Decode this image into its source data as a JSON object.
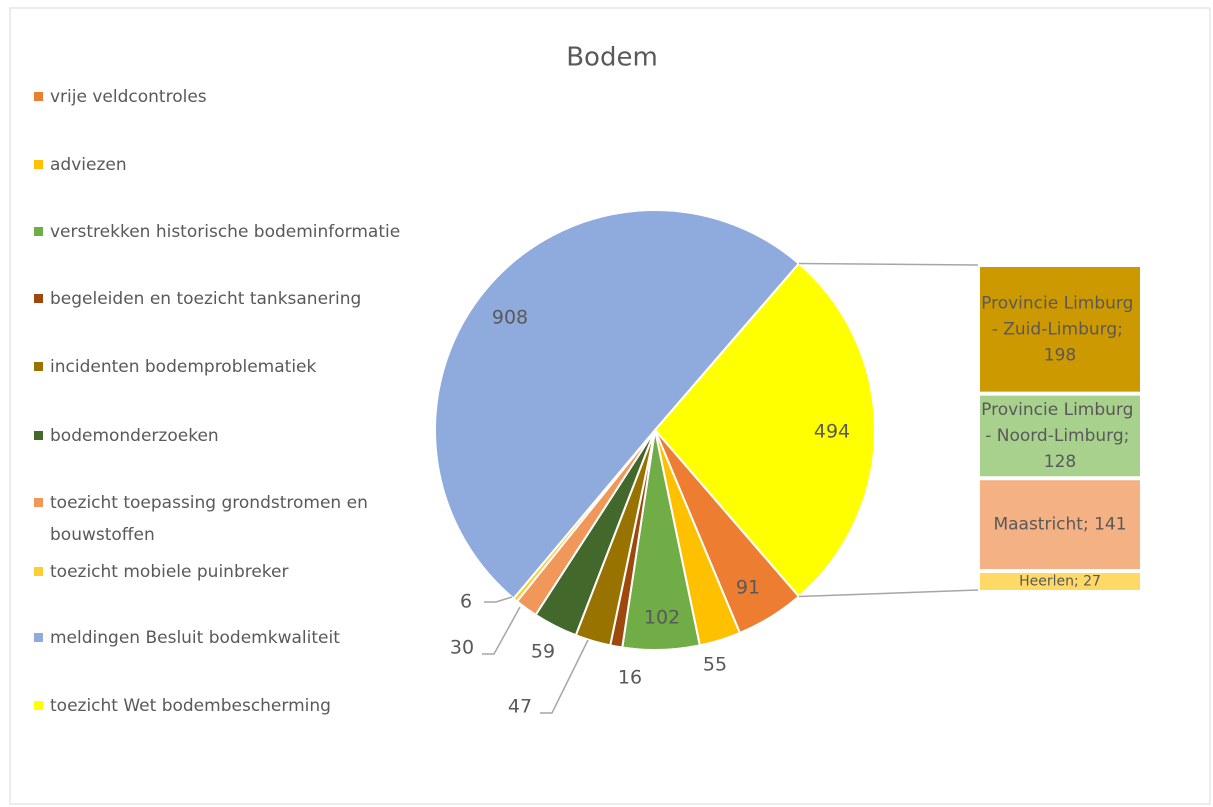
{
  "chart_data": {
    "type": "bar-of-pie",
    "title": "Bodem",
    "legend": "left",
    "categories": [
      "vrije veldcontroles",
      "adviezen",
      "verstrekken historische bodeminformatie",
      "begeleiden en toezicht tanksanering",
      "incidenten bodemproblematiek",
      "bodemonderzoeken",
      "toezicht toepassing grondstromen en bouwstoffen",
      "toezicht mobiele puinbreker",
      "meldingen Besluit bodemkwaliteit",
      "toezicht Wet bodembescherming"
    ],
    "values": [
      91,
      55,
      102,
      16,
      47,
      59,
      30,
      6,
      908,
      494
    ],
    "colors": [
      "#ED7D31",
      "#FFC000",
      "#70AD47",
      "#9E480E",
      "#997300",
      "#43682B",
      "#F1975A",
      "#FFCD33",
      "#8FAADC",
      "#FFFF00"
    ],
    "bar": {
      "categories": [
        "Provincie Limburg - Zuid-Limburg",
        "Provincie Limburg - Noord-Limburg",
        "Maastricht",
        "Heerlen"
      ],
      "values": [
        198,
        128,
        141,
        27
      ],
      "value_labels": [
        "Provincie Limburg - Zuid-Limburg; 198",
        "Provincie Limburg - Noord-Limburg; 128",
        "Maastricht; 141",
        "Heerlen; 27"
      ],
      "colors": [
        "#CC9900",
        "#A9D18E",
        "#F4B183",
        "#FFD966"
      ]
    }
  }
}
